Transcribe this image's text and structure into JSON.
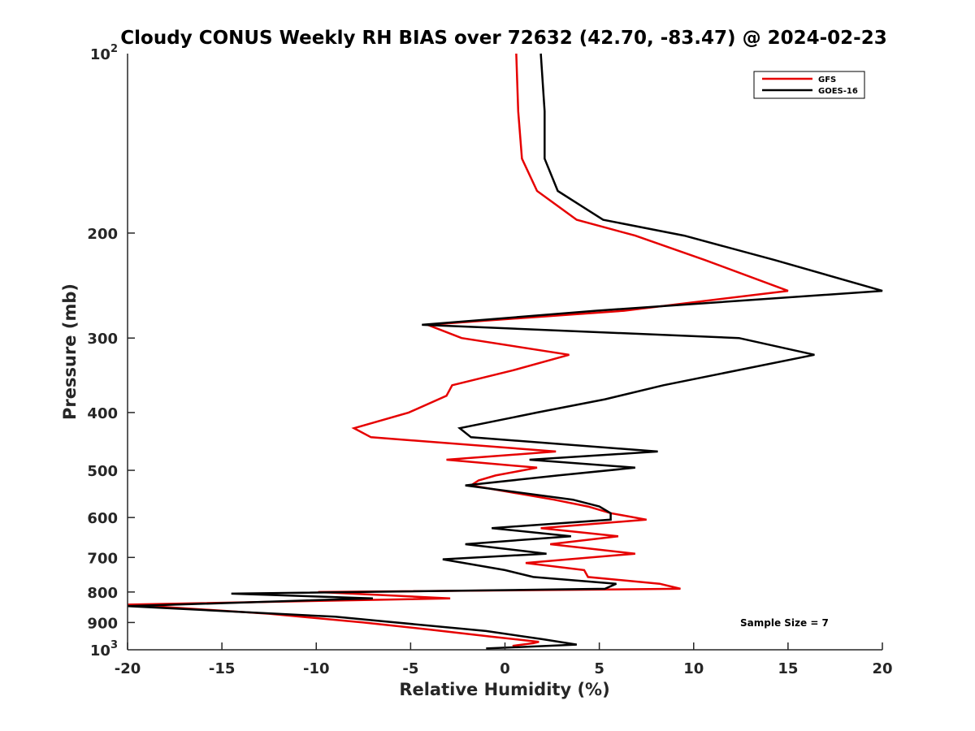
{
  "chart_data": {
    "type": "line",
    "title": "Cloudy CONUS Weekly RH BIAS over 72632 (42.70, -83.47) @ 2024-02-23",
    "xlabel": "Relative Humidity (%)",
    "ylabel": "Pressure (mb)",
    "xlim": [
      -20,
      20
    ],
    "ylim": [
      1000,
      100
    ],
    "y_scale": "log",
    "y_reversed": true,
    "grid": false,
    "legend_position": "top-right",
    "x_ticks": [
      -20,
      -15,
      -10,
      -5,
      0,
      5,
      10,
      15,
      20
    ],
    "x_tick_labels": [
      "-20",
      "-15",
      "-10",
      "-5",
      "0",
      "5",
      "10",
      "15",
      "20"
    ],
    "y_ticks": [
      200,
      300,
      400,
      500,
      600,
      700,
      800,
      900
    ],
    "y_tick_labels": [
      "200",
      "300",
      "400",
      "500",
      "600",
      "700",
      "800",
      "900"
    ],
    "y_end_labels": {
      "top": {
        "base": "10",
        "exp": "2"
      },
      "bottom": {
        "base": "10",
        "exp": "3"
      }
    },
    "annotation": "Sample Size = 7",
    "series": [
      {
        "name": "GFS",
        "color": "#e60000",
        "points": [
          [
            0.6,
            100
          ],
          [
            0.7,
            125
          ],
          [
            0.9,
            150
          ],
          [
            1.7,
            170
          ],
          [
            3.8,
            190
          ],
          [
            6.9,
            202
          ],
          [
            10.6,
            222
          ],
          [
            15.0,
            250
          ],
          [
            6.3,
            270
          ],
          [
            -4.1,
            285
          ],
          [
            -2.3,
            300
          ],
          [
            3.4,
            320
          ],
          [
            0.4,
            340
          ],
          [
            -2.8,
            360
          ],
          [
            -3.1,
            375
          ],
          [
            -5.1,
            400
          ],
          [
            -8.0,
            425
          ],
          [
            -7.1,
            440
          ],
          [
            2.7,
            465
          ],
          [
            -3.1,
            480
          ],
          [
            1.7,
            495
          ],
          [
            -0.5,
            510
          ],
          [
            -1.4,
            520
          ],
          [
            -1.8,
            530
          ],
          [
            2.6,
            560
          ],
          [
            4.4,
            575
          ],
          [
            5.6,
            590
          ],
          [
            7.5,
            605
          ],
          [
            1.9,
            625
          ],
          [
            6.0,
            645
          ],
          [
            2.4,
            665
          ],
          [
            6.9,
            690
          ],
          [
            1.1,
            715
          ],
          [
            4.2,
            735
          ],
          [
            4.4,
            755
          ],
          [
            8.2,
            775
          ],
          [
            9.3,
            790
          ],
          [
            -9.9,
            800
          ],
          [
            -2.9,
            820
          ],
          [
            -20.0,
            840
          ],
          [
            -12.5,
            870
          ],
          [
            -7.5,
            900
          ],
          [
            -4.0,
            925
          ],
          [
            -0.8,
            950
          ],
          [
            1.8,
            970
          ],
          [
            1.5,
            975
          ],
          [
            0.4,
            985
          ]
        ]
      },
      {
        "name": "GOES-16",
        "color": "#000000",
        "points": [
          [
            1.9,
            100
          ],
          [
            2.1,
            125
          ],
          [
            2.1,
            150
          ],
          [
            2.8,
            170
          ],
          [
            5.2,
            190
          ],
          [
            9.5,
            202
          ],
          [
            14.3,
            222
          ],
          [
            20.0,
            250
          ],
          [
            4.8,
            270
          ],
          [
            -4.4,
            285
          ],
          [
            12.4,
            300
          ],
          [
            16.4,
            320
          ],
          [
            8.4,
            360
          ],
          [
            5.3,
            380
          ],
          [
            1.7,
            400
          ],
          [
            -2.4,
            425
          ],
          [
            -1.8,
            440
          ],
          [
            8.1,
            465
          ],
          [
            1.3,
            480
          ],
          [
            6.9,
            495
          ],
          [
            2.8,
            510
          ],
          [
            -2.1,
            530
          ],
          [
            3.6,
            560
          ],
          [
            5.0,
            575
          ],
          [
            5.6,
            590
          ],
          [
            5.6,
            605
          ],
          [
            -0.7,
            625
          ],
          [
            3.5,
            645
          ],
          [
            -2.1,
            665
          ],
          [
            2.2,
            690
          ],
          [
            -3.3,
            705
          ],
          [
            0.0,
            735
          ],
          [
            1.5,
            755
          ],
          [
            5.9,
            775
          ],
          [
            5.3,
            790
          ],
          [
            -14.5,
            805
          ],
          [
            -7.0,
            820
          ],
          [
            -20.0,
            845
          ],
          [
            -9.0,
            880
          ],
          [
            -1.0,
            930
          ],
          [
            2.0,
            960
          ],
          [
            3.8,
            980
          ],
          [
            -1.0,
            995
          ]
        ]
      }
    ]
  }
}
